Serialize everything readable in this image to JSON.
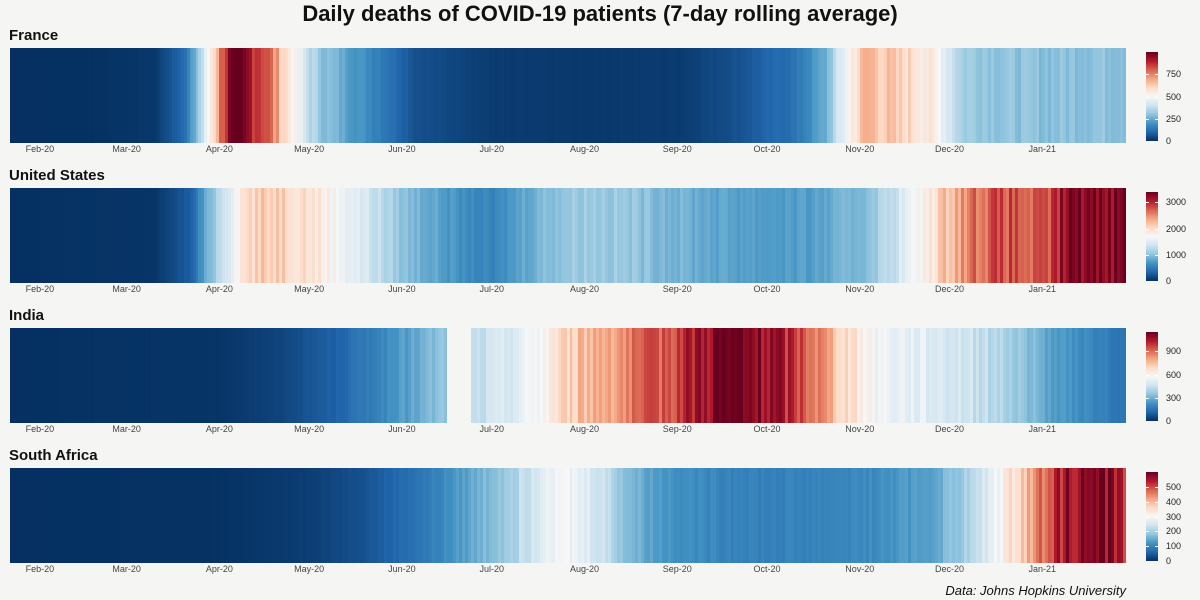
{
  "title": "Daily deaths of COVID-19 patients (7-day rolling average)",
  "source": "Data: Johns Hopkins University",
  "chart_data": [
    {
      "type": "heatmap",
      "name": "France",
      "x_start": "2020-01-22",
      "x_end": "2021-01-28",
      "x_ticks": [
        "Feb-20",
        "Mar-20",
        "Apr-20",
        "May-20",
        "Jun-20",
        "Jul-20",
        "Aug-20",
        "Sep-20",
        "Oct-20",
        "Nov-20",
        "Dec-20",
        "Jan-21"
      ],
      "color_scale": {
        "min": 0,
        "max": 1000,
        "mid": 500,
        "ticks": [
          0,
          250,
          500,
          750
        ]
      },
      "x": [
        "2020-01-22",
        "2020-02-20",
        "2020-03-10",
        "2020-03-20",
        "2020-03-26",
        "2020-03-30",
        "2020-04-02",
        "2020-04-05",
        "2020-04-10",
        "2020-04-15",
        "2020-04-20",
        "2020-04-25",
        "2020-04-30",
        "2020-05-05",
        "2020-05-15",
        "2020-05-25",
        "2020-06-05",
        "2020-07-01",
        "2020-08-01",
        "2020-09-01",
        "2020-09-20",
        "2020-10-10",
        "2020-10-20",
        "2020-10-25",
        "2020-10-30",
        "2020-11-03",
        "2020-11-08",
        "2020-11-15",
        "2020-11-22",
        "2020-11-28",
        "2020-12-05",
        "2020-12-20",
        "2021-01-01",
        "2021-01-15",
        "2021-01-28"
      ],
      "values": [
        0,
        2,
        15,
        120,
        380,
        620,
        850,
        980,
        930,
        870,
        690,
        520,
        380,
        300,
        220,
        150,
        60,
        20,
        15,
        20,
        60,
        130,
        250,
        420,
        580,
        680,
        640,
        600,
        570,
        480,
        330,
        300,
        290,
        300,
        300
      ]
    },
    {
      "type": "heatmap",
      "name": "United States",
      "x_start": "2020-01-22",
      "x_end": "2021-01-28",
      "x_ticks": [
        "Feb-20",
        "Mar-20",
        "Apr-20",
        "May-20",
        "Jun-20",
        "Jul-20",
        "Aug-20",
        "Sep-20",
        "Oct-20",
        "Nov-20",
        "Dec-20",
        "Jan-21"
      ],
      "color_scale": {
        "min": 0,
        "max": 3400,
        "mid": 1750,
        "ticks": [
          0,
          1000,
          2000,
          3000
        ]
      },
      "x": [
        "2020-01-22",
        "2020-03-10",
        "2020-03-22",
        "2020-04-01",
        "2020-04-10",
        "2020-04-20",
        "2020-04-30",
        "2020-05-10",
        "2020-05-20",
        "2020-06-01",
        "2020-06-20",
        "2020-07-01",
        "2020-07-10",
        "2020-07-20",
        "2020-08-01",
        "2020-08-15",
        "2020-09-01",
        "2020-09-15",
        "2020-10-01",
        "2020-10-15",
        "2020-11-01",
        "2020-11-10",
        "2020-11-20",
        "2020-12-01",
        "2020-12-10",
        "2020-12-20",
        "2021-01-01",
        "2021-01-10",
        "2021-01-20",
        "2021-01-28"
      ],
      "values": [
        0,
        30,
        300,
        1300,
        2050,
        2150,
        2000,
        1700,
        1400,
        1000,
        650,
        550,
        800,
        1000,
        1100,
        1050,
        900,
        800,
        750,
        750,
        950,
        1250,
        1700,
        2300,
        2700,
        2800,
        2650,
        3300,
        3350,
        3300
      ]
    },
    {
      "type": "heatmap",
      "name": "India",
      "x_start": "2020-01-22",
      "x_end": "2021-01-28",
      "x_ticks": [
        "Feb-20",
        "Mar-20",
        "Apr-20",
        "May-20",
        "Jun-20",
        "Jul-20",
        "Aug-20",
        "Sep-20",
        "Oct-20",
        "Nov-20",
        "Dec-20",
        "Jan-21"
      ],
      "color_scale": {
        "min": 0,
        "max": 1150,
        "mid": 575,
        "ticks": [
          0,
          300,
          600,
          900
        ]
      },
      "gaps": [
        [
          "2020-06-16",
          "2020-06-23"
        ]
      ],
      "x": [
        "2020-01-22",
        "2020-04-01",
        "2020-04-20",
        "2020-05-10",
        "2020-05-25",
        "2020-06-15",
        "2020-06-24",
        "2020-07-05",
        "2020-07-15",
        "2020-07-25",
        "2020-08-05",
        "2020-08-20",
        "2020-09-05",
        "2020-09-15",
        "2020-09-25",
        "2020-10-05",
        "2020-10-15",
        "2020-10-25",
        "2020-11-05",
        "2020-11-20",
        "2020-12-05",
        "2020-12-20",
        "2021-01-05",
        "2021-01-28"
      ],
      "values": [
        0,
        10,
        40,
        110,
        200,
        350,
        420,
        480,
        560,
        700,
        800,
        880,
        1030,
        1140,
        1100,
        1040,
        920,
        720,
        560,
        520,
        470,
        390,
        250,
        150
      ]
    },
    {
      "type": "heatmap",
      "name": "South Africa",
      "x_start": "2020-01-22",
      "x_end": "2021-01-28",
      "x_ticks": [
        "Feb-20",
        "Mar-20",
        "Apr-20",
        "May-20",
        "Jun-20",
        "Jul-20",
        "Aug-20",
        "Sep-20",
        "Oct-20",
        "Nov-20",
        "Dec-20",
        "Jan-21"
      ],
      "color_scale": {
        "min": 0,
        "max": 600,
        "mid": 300,
        "ticks": [
          0,
          100,
          200,
          300,
          400,
          500
        ]
      },
      "x": [
        "2020-01-22",
        "2020-04-01",
        "2020-05-01",
        "2020-05-20",
        "2020-06-10",
        "2020-06-25",
        "2020-07-10",
        "2020-07-20",
        "2020-07-28",
        "2020-08-05",
        "2020-08-15",
        "2020-08-25",
        "2020-09-10",
        "2020-10-01",
        "2020-10-20",
        "2020-11-05",
        "2020-11-25",
        "2020-12-10",
        "2020-12-20",
        "2020-12-28",
        "2021-01-05",
        "2021-01-12",
        "2021-01-20",
        "2021-01-28"
      ],
      "values": [
        0,
        2,
        15,
        40,
        90,
        150,
        220,
        300,
        280,
        250,
        170,
        130,
        105,
        95,
        100,
        110,
        140,
        220,
        330,
        420,
        530,
        570,
        590,
        520
      ]
    }
  ]
}
